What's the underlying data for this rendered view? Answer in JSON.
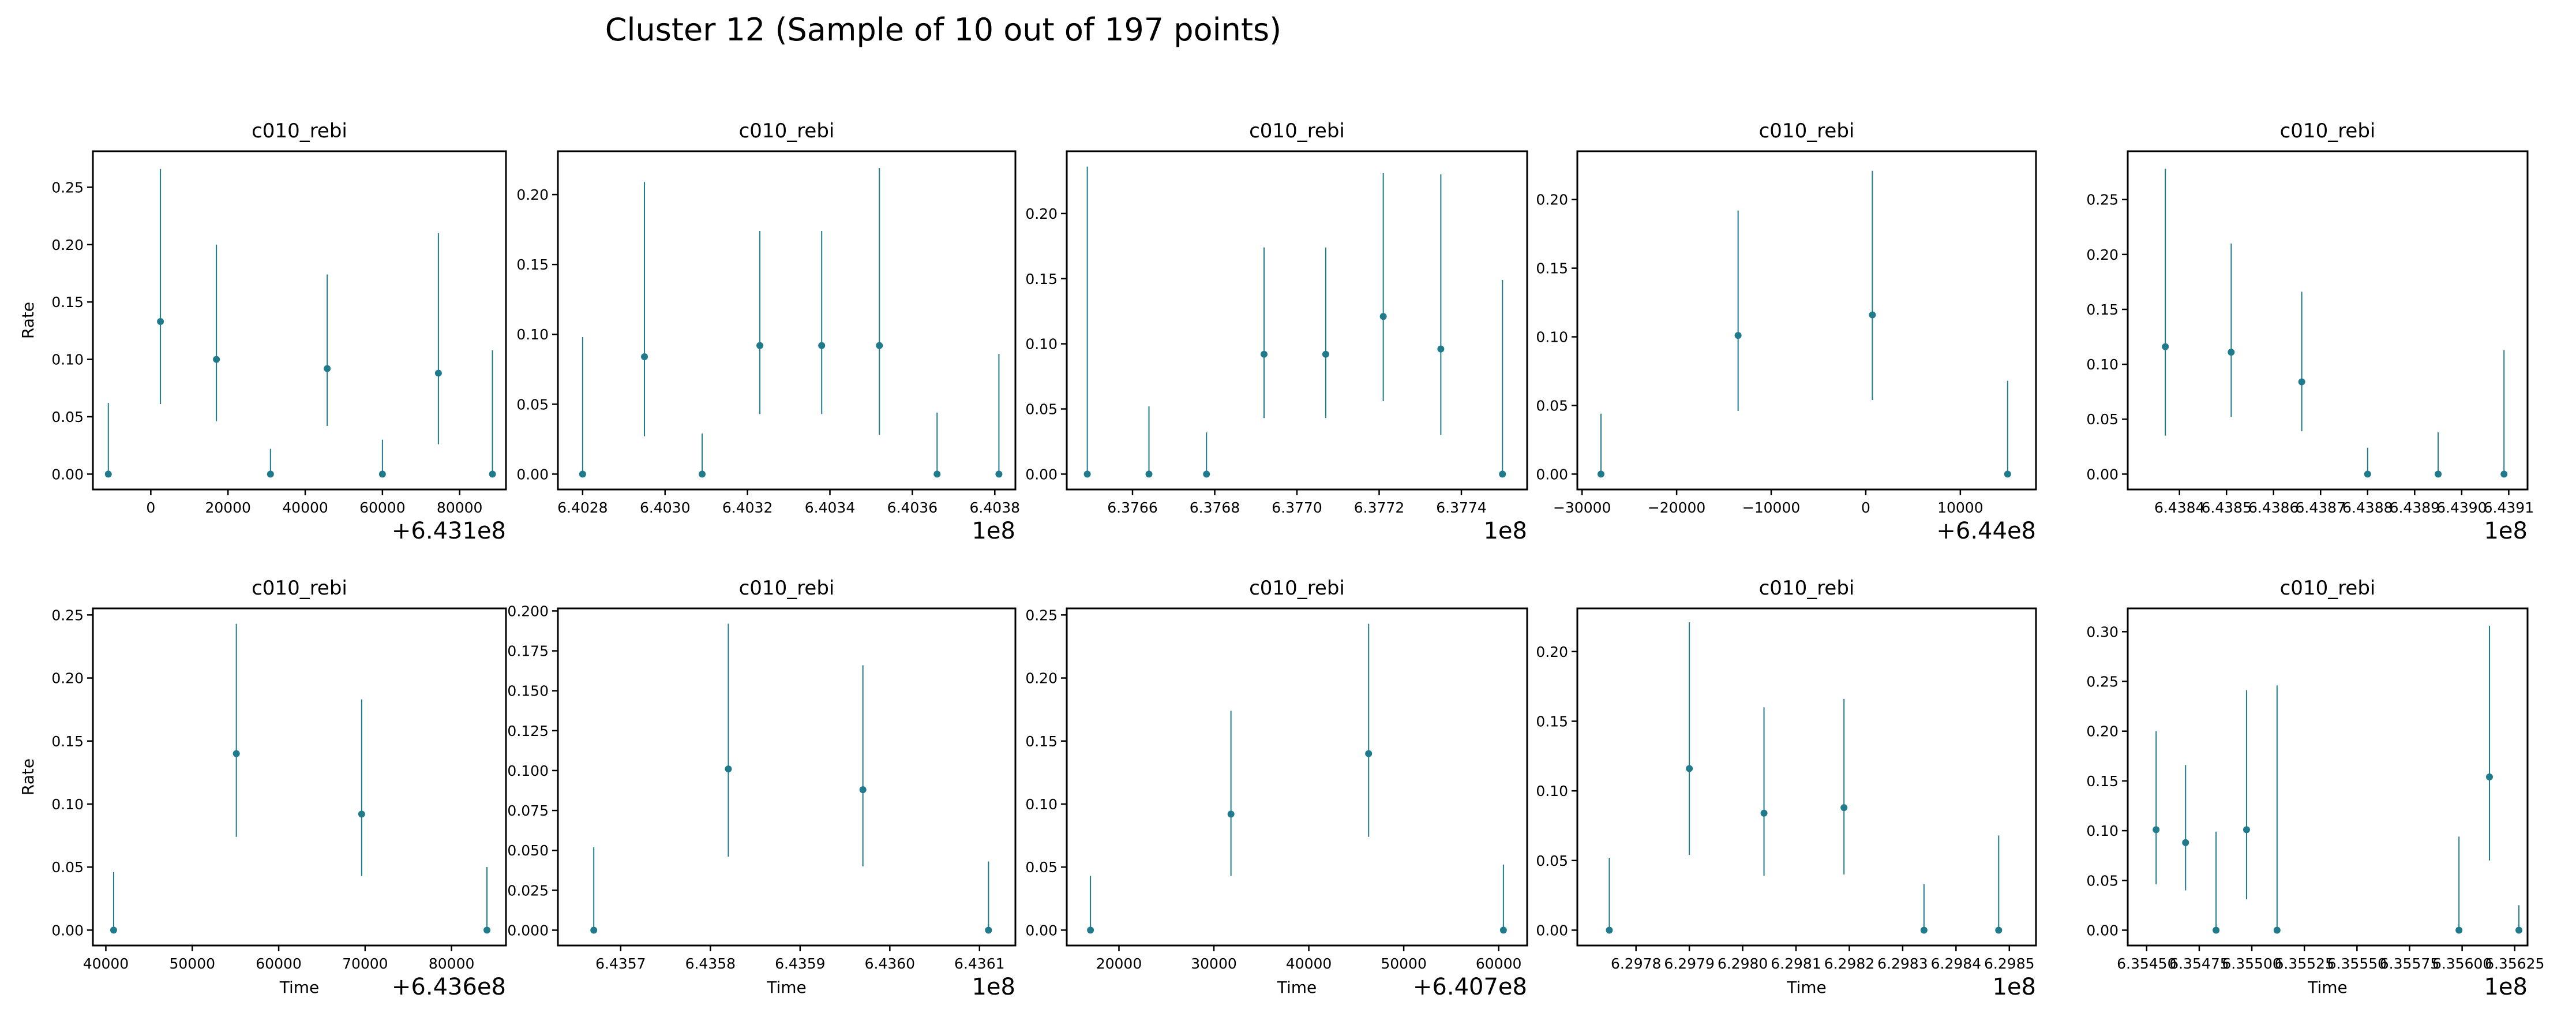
{
  "figure": {
    "title": "Cluster 12 (Sample of 10 out of 197 points)",
    "marker_color": "#1f7a8c"
  },
  "chart_data": [
    {
      "type": "errorbar",
      "title": "c010_rebi",
      "ylabel": "Rate",
      "xlabel": "",
      "xlim": [
        -15000,
        92000
      ],
      "ylim": [
        -0.0134,
        0.2814
      ],
      "xticks": [
        0,
        20000,
        40000,
        60000,
        80000
      ],
      "xtick_labels": [
        "0",
        "20000",
        "40000",
        "60000",
        "80000"
      ],
      "yticks": [
        0,
        0.05,
        0.1,
        0.15,
        0.2,
        0.25
      ],
      "ytick_labels": [
        "0.00",
        "0.05",
        "0.10",
        "0.15",
        "0.20",
        "0.25"
      ],
      "x_offset_label": "+6.431e8",
      "points": [
        {
          "x": -11000,
          "y": 0.0,
          "lo": 0.0,
          "hi": 0.062
        },
        {
          "x": 2500,
          "y": 0.133,
          "lo": 0.061,
          "hi": 0.266
        },
        {
          "x": 17000,
          "y": 0.1,
          "lo": 0.046,
          "hi": 0.2
        },
        {
          "x": 31000,
          "y": 0.0,
          "lo": 0.0,
          "hi": 0.022
        },
        {
          "x": 45700,
          "y": 0.092,
          "lo": 0.042,
          "hi": 0.174
        },
        {
          "x": 60000,
          "y": 0.0,
          "lo": 0.0,
          "hi": 0.03
        },
        {
          "x": 74500,
          "y": 0.088,
          "lo": 0.026,
          "hi": 0.21
        },
        {
          "x": 88500,
          "y": 0.0,
          "lo": 0.0,
          "hi": 0.108
        }
      ]
    },
    {
      "type": "errorbar",
      "title": "c010_rebi",
      "ylabel": "",
      "xlabel": "",
      "xlim": [
        6.40274,
        6.40385
      ],
      "ylim": [
        -0.011,
        0.231
      ],
      "xticks": [
        6.4028,
        6.403,
        6.4032,
        6.4034,
        6.4036,
        6.4038
      ],
      "xtick_labels": [
        "6.4028",
        "6.4030",
        "6.4032",
        "6.4034",
        "6.4036",
        "6.4038"
      ],
      "yticks": [
        0,
        0.05,
        0.1,
        0.15,
        0.2
      ],
      "ytick_labels": [
        "0.00",
        "0.05",
        "0.10",
        "0.15",
        "0.20"
      ],
      "x_offset_label": "1e8",
      "points": [
        {
          "x": 6.4028,
          "y": 0.0,
          "lo": 0.0,
          "hi": 0.098
        },
        {
          "x": 6.40295,
          "y": 0.084,
          "lo": 0.027,
          "hi": 0.209
        },
        {
          "x": 6.40309,
          "y": 0.0,
          "lo": 0.0,
          "hi": 0.029
        },
        {
          "x": 6.40323,
          "y": 0.092,
          "lo": 0.043,
          "hi": 0.174
        },
        {
          "x": 6.40338,
          "y": 0.092,
          "lo": 0.043,
          "hi": 0.174
        },
        {
          "x": 6.40352,
          "y": 0.092,
          "lo": 0.028,
          "hi": 0.219
        },
        {
          "x": 6.40366,
          "y": 0.0,
          "lo": 0.0,
          "hi": 0.044
        },
        {
          "x": 6.40381,
          "y": 0.0,
          "lo": 0.0,
          "hi": 0.086
        }
      ]
    },
    {
      "type": "errorbar",
      "title": "c010_rebi",
      "ylabel": "",
      "xlabel": "",
      "xlim": [
        6.37644,
        6.37756
      ],
      "ylim": [
        -0.0118,
        0.2478
      ],
      "xticks": [
        6.3766,
        6.3768,
        6.377,
        6.3772,
        6.3774
      ],
      "xtick_labels": [
        "6.3766",
        "6.3768",
        "6.3770",
        "6.3772",
        "6.3774"
      ],
      "yticks": [
        0,
        0.05,
        0.1,
        0.15,
        0.2
      ],
      "ytick_labels": [
        "0.00",
        "0.05",
        "0.10",
        "0.15",
        "0.20"
      ],
      "x_offset_label": "1e8",
      "points": [
        {
          "x": 6.37649,
          "y": 0.0,
          "lo": 0.0,
          "hi": 0.236
        },
        {
          "x": 6.37664,
          "y": 0.0,
          "lo": 0.0,
          "hi": 0.052
        },
        {
          "x": 6.37678,
          "y": 0.0,
          "lo": 0.0,
          "hi": 0.032
        },
        {
          "x": 6.37692,
          "y": 0.092,
          "lo": 0.043,
          "hi": 0.174
        },
        {
          "x": 6.37707,
          "y": 0.092,
          "lo": 0.043,
          "hi": 0.174
        },
        {
          "x": 6.37721,
          "y": 0.121,
          "lo": 0.056,
          "hi": 0.231
        },
        {
          "x": 6.37735,
          "y": 0.096,
          "lo": 0.03,
          "hi": 0.23
        },
        {
          "x": 6.3775,
          "y": 0.0,
          "lo": 0.0,
          "hi": 0.149
        }
      ]
    },
    {
      "type": "errorbar",
      "title": "c010_rebi",
      "ylabel": "",
      "xlabel": "",
      "xlim": [
        -30500,
        18000
      ],
      "ylim": [
        -0.0112,
        0.2352
      ],
      "xticks": [
        -30000,
        -20000,
        -10000,
        0,
        10000
      ],
      "xtick_labels": [
        "−30000",
        "−20000",
        "−10000",
        "0",
        "10000"
      ],
      "yticks": [
        0,
        0.05,
        0.1,
        0.15,
        0.2
      ],
      "ytick_labels": [
        "0.00",
        "0.05",
        "0.10",
        "0.15",
        "0.20"
      ],
      "x_offset_label": "+6.44e8",
      "points": [
        {
          "x": -28000,
          "y": 0.0,
          "lo": 0.0,
          "hi": 0.044
        },
        {
          "x": -13500,
          "y": 0.101,
          "lo": 0.046,
          "hi": 0.192
        },
        {
          "x": 700,
          "y": 0.116,
          "lo": 0.054,
          "hi": 0.221
        },
        {
          "x": 15000,
          "y": 0.0,
          "lo": 0.0,
          "hi": 0.068
        }
      ]
    },
    {
      "type": "errorbar",
      "title": "c010_rebi",
      "ylabel": "",
      "xlabel": "",
      "xlim": [
        6.43829,
        6.43914
      ],
      "ylim": [
        -0.014,
        0.294
      ],
      "xticks": [
        6.4384,
        6.4385,
        6.4386,
        6.4387,
        6.4388,
        6.4389,
        6.439,
        6.4391
      ],
      "xtick_labels": [
        "6.4384",
        "6.4385",
        "6.4386",
        "6.4387",
        "6.4388",
        "6.4389",
        "6.4390",
        "6.4391"
      ],
      "yticks": [
        0,
        0.05,
        0.1,
        0.15,
        0.2,
        0.25
      ],
      "ytick_labels": [
        "0.00",
        "0.05",
        "0.10",
        "0.15",
        "0.20",
        "0.25"
      ],
      "x_offset_label": "1e8",
      "points": [
        {
          "x": 6.43837,
          "y": 0.116,
          "lo": 0.035,
          "hi": 0.278
        },
        {
          "x": 6.43851,
          "y": 0.111,
          "lo": 0.052,
          "hi": 0.21
        },
        {
          "x": 6.43866,
          "y": 0.084,
          "lo": 0.039,
          "hi": 0.166
        },
        {
          "x": 6.4388,
          "y": 0.0,
          "lo": 0.0,
          "hi": 0.024
        },
        {
          "x": 6.43895,
          "y": 0.0,
          "lo": 0.0,
          "hi": 0.038
        },
        {
          "x": 6.43909,
          "y": 0.0,
          "lo": 0.0,
          "hi": 0.113
        }
      ]
    },
    {
      "type": "errorbar",
      "title": "c010_rebi",
      "ylabel": "Rate",
      "xlabel": "Time",
      "xlim": [
        38500,
        86300
      ],
      "ylim": [
        -0.0122,
        0.2552
      ],
      "xticks": [
        40000,
        50000,
        60000,
        70000,
        80000
      ],
      "xtick_labels": [
        "40000",
        "50000",
        "60000",
        "70000",
        "80000"
      ],
      "yticks": [
        0,
        0.05,
        0.1,
        0.15,
        0.2,
        0.25
      ],
      "ytick_labels": [
        "0.00",
        "0.05",
        "0.10",
        "0.15",
        "0.20",
        "0.25"
      ],
      "x_offset_label": "+6.436e8",
      "points": [
        {
          "x": 40900,
          "y": 0.0,
          "lo": 0.0,
          "hi": 0.046
        },
        {
          "x": 55100,
          "y": 0.14,
          "lo": 0.074,
          "hi": 0.243
        },
        {
          "x": 69600,
          "y": 0.092,
          "lo": 0.043,
          "hi": 0.183
        },
        {
          "x": 84100,
          "y": 0.0,
          "lo": 0.0,
          "hi": 0.05
        }
      ]
    },
    {
      "type": "errorbar",
      "title": "c010_rebi",
      "ylabel": "",
      "xlabel": "Time",
      "xlim": [
        6.43563,
        6.43614
      ],
      "ylim": [
        -0.0096,
        0.2016
      ],
      "xticks": [
        6.4357,
        6.4358,
        6.4359,
        6.436,
        6.4361
      ],
      "xtick_labels": [
        "6.4357",
        "6.4358",
        "6.4359",
        "6.4360",
        "6.4361"
      ],
      "yticks": [
        0,
        0.025,
        0.05,
        0.075,
        0.1,
        0.125,
        0.15,
        0.175,
        0.2
      ],
      "ytick_labels": [
        "0.000",
        "0.025",
        "0.050",
        "0.075",
        "0.100",
        "0.125",
        "0.150",
        "0.175",
        "0.200"
      ],
      "x_offset_label": "1e8",
      "points": [
        {
          "x": 6.43567,
          "y": 0.0,
          "lo": 0.0,
          "hi": 0.052
        },
        {
          "x": 6.43582,
          "y": 0.101,
          "lo": 0.046,
          "hi": 0.192
        },
        {
          "x": 6.43597,
          "y": 0.088,
          "lo": 0.04,
          "hi": 0.166
        },
        {
          "x": 6.43611,
          "y": 0.0,
          "lo": 0.0,
          "hi": 0.043
        }
      ]
    },
    {
      "type": "errorbar",
      "title": "c010_rebi",
      "ylabel": "",
      "xlabel": "Time",
      "xlim": [
        14500,
        63000
      ],
      "ylim": [
        -0.0122,
        0.2552
      ],
      "xticks": [
        20000,
        30000,
        40000,
        50000,
        60000
      ],
      "xtick_labels": [
        "20000",
        "30000",
        "40000",
        "50000",
        "60000"
      ],
      "yticks": [
        0,
        0.05,
        0.1,
        0.15,
        0.2,
        0.25
      ],
      "ytick_labels": [
        "0.00",
        "0.05",
        "0.10",
        "0.15",
        "0.20",
        "0.25"
      ],
      "x_offset_label": "+6.407e8",
      "points": [
        {
          "x": 17000,
          "y": 0.0,
          "lo": 0.0,
          "hi": 0.043
        },
        {
          "x": 31800,
          "y": 0.092,
          "lo": 0.043,
          "hi": 0.174
        },
        {
          "x": 46300,
          "y": 0.14,
          "lo": 0.074,
          "hi": 0.243
        },
        {
          "x": 60500,
          "y": 0.0,
          "lo": 0.0,
          "hi": 0.052
        }
      ]
    },
    {
      "type": "errorbar",
      "title": "c010_rebi",
      "ylabel": "",
      "xlabel": "Time",
      "xlim": [
        6.29769,
        6.29855
      ],
      "ylim": [
        -0.011,
        0.231
      ],
      "xticks": [
        6.2978,
        6.2979,
        6.298,
        6.2981,
        6.2982,
        6.2983,
        6.2984,
        6.2985
      ],
      "xtick_labels": [
        "6.2978",
        "6.2979",
        "6.2980",
        "6.2981",
        "6.2982",
        "6.2983",
        "6.2984",
        "6.2985"
      ],
      "yticks": [
        0,
        0.05,
        0.1,
        0.15,
        0.2
      ],
      "ytick_labels": [
        "0.00",
        "0.05",
        "0.10",
        "0.15",
        "0.20"
      ],
      "x_offset_label": "1e8",
      "points": [
        {
          "x": 6.29775,
          "y": 0.0,
          "lo": 0.0,
          "hi": 0.052
        },
        {
          "x": 6.2979,
          "y": 0.116,
          "lo": 0.054,
          "hi": 0.221
        },
        {
          "x": 6.29804,
          "y": 0.084,
          "lo": 0.039,
          "hi": 0.16
        },
        {
          "x": 6.29819,
          "y": 0.088,
          "lo": 0.04,
          "hi": 0.166
        },
        {
          "x": 6.29834,
          "y": 0.0,
          "lo": 0.0,
          "hi": 0.033
        },
        {
          "x": 6.29848,
          "y": 0.0,
          "lo": 0.0,
          "hi": 0.068
        }
      ]
    },
    {
      "type": "errorbar",
      "title": "c010_rebi",
      "ylabel": "",
      "xlabel": "Time",
      "xlim": [
        6.35441,
        6.356311
      ],
      "ylim": [
        -0.0154,
        0.3234
      ],
      "xticks": [
        6.3545,
        6.35475,
        6.355,
        6.35525,
        6.3555,
        6.35575,
        6.356,
        6.35625
      ],
      "xtick_labels": [
        "6.35450",
        "6.35475",
        "6.35500",
        "6.35525",
        "6.35550",
        "6.35575",
        "6.35600",
        "6.35625"
      ],
      "yticks": [
        0,
        0.05,
        0.1,
        0.15,
        0.2,
        0.25,
        0.3
      ],
      "ytick_labels": [
        "0.00",
        "0.05",
        "0.10",
        "0.15",
        "0.20",
        "0.25",
        "0.30"
      ],
      "x_offset_label": "1e8",
      "points": [
        {
          "x": 6.354545,
          "y": 0.101,
          "lo": 0.046,
          "hi": 0.2
        },
        {
          "x": 6.354685,
          "y": 0.088,
          "lo": 0.04,
          "hi": 0.166
        },
        {
          "x": 6.35483,
          "y": 0.0,
          "lo": 0.0,
          "hi": 0.099
        },
        {
          "x": 6.354975,
          "y": 0.101,
          "lo": 0.031,
          "hi": 0.241
        },
        {
          "x": 6.35512,
          "y": 0.0,
          "lo": 0.0,
          "hi": 0.246
        },
        {
          "x": 6.355985,
          "y": 0.0,
          "lo": 0.0,
          "hi": 0.094
        },
        {
          "x": 6.35613,
          "y": 0.154,
          "lo": 0.07,
          "hi": 0.306
        },
        {
          "x": 6.35627,
          "y": 0.0,
          "lo": 0.0,
          "hi": 0.025
        }
      ]
    }
  ]
}
